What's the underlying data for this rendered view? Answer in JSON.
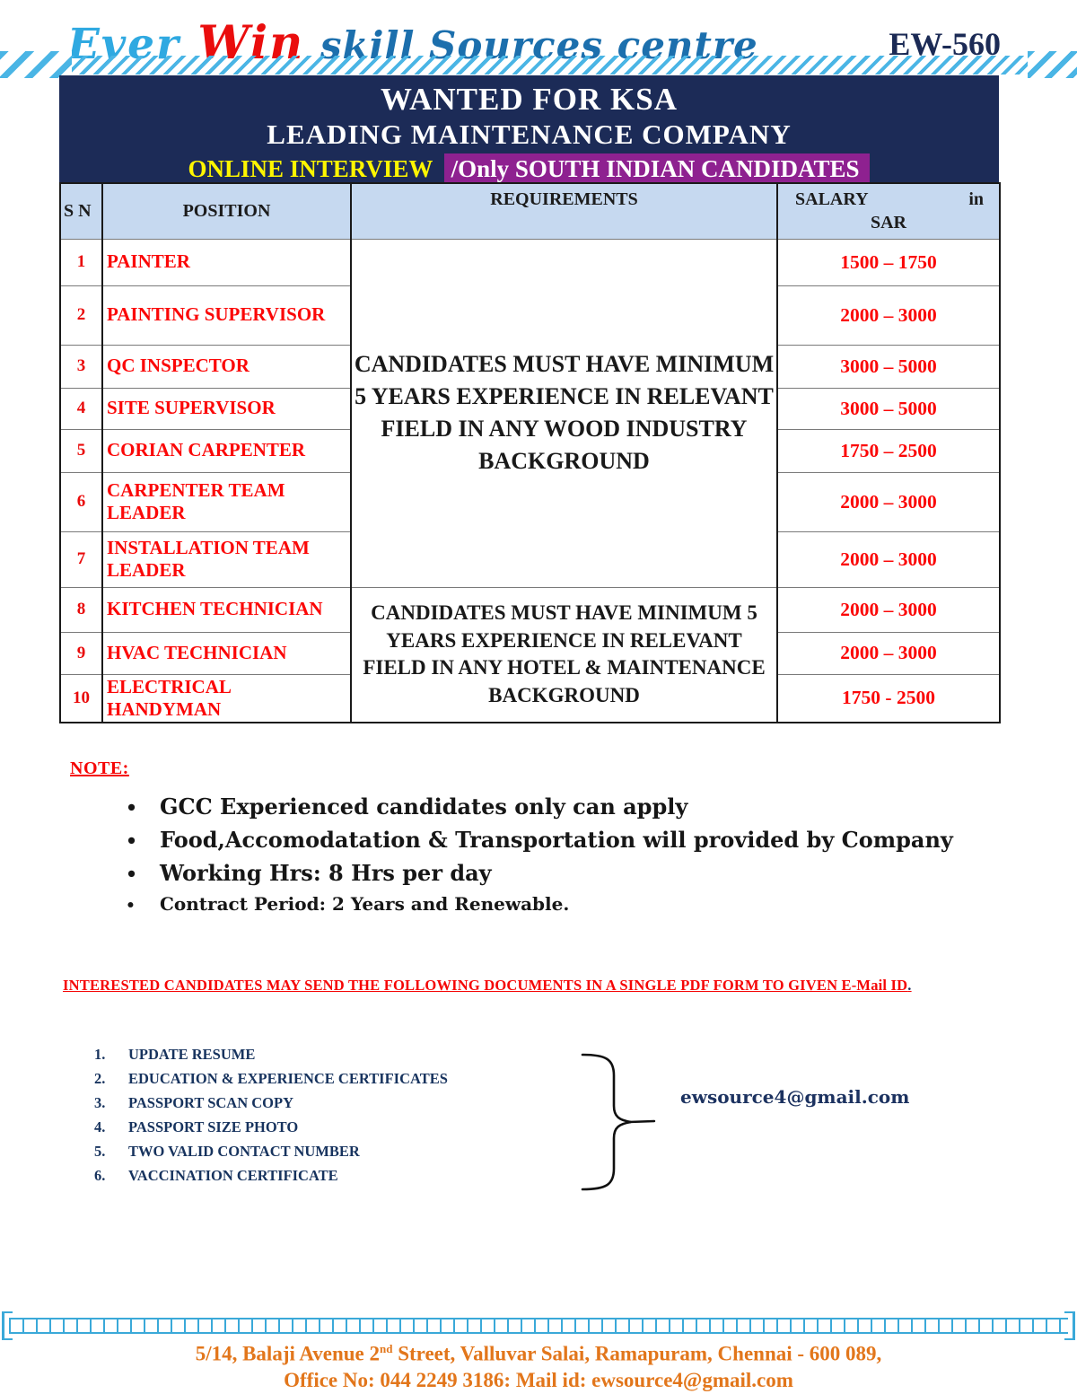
{
  "header": {
    "logo_part1": "Ever",
    "logo_part2": "Win",
    "logo_part3": "skill Sources centre",
    "code": "EW-560"
  },
  "banner": {
    "title": "WANTED FOR KSA",
    "subtitle": "LEADING MAINTENANCE COMPANY",
    "highlight_yellow": "ONLINE INTERVIEW",
    "highlight_purple": "/Only SOUTH INDIAN CANDIDATES"
  },
  "table": {
    "headers": {
      "sn": "S N",
      "position": "POSITION",
      "requirements": "REQUIREMENTS",
      "salary_l1_left": "SALARY",
      "salary_l1_right": "in",
      "salary_l2": "SAR"
    },
    "requirement_blocks": [
      {
        "text": "CANDIDATES MUST HAVE MINIMUM 5 YEARS EXPERIENCE IN RELEVANT FIELD IN ANY WOOD INDUSTRY BACKGROUND",
        "rowspan": 7
      },
      {
        "text": "CANDIDATES MUST HAVE MINIMUM 5 YEARS EXPERIENCE IN RELEVANT FIELD IN ANY HOTEL & MAINTENANCE BACKGROUND",
        "rowspan": 3
      }
    ],
    "rows": [
      {
        "sn": "1",
        "position": "PAINTER",
        "salary": "1500 – 1750",
        "req_block": 0
      },
      {
        "sn": "2",
        "position": "PAINTING SUPERVISOR",
        "salary": "2000 – 3000"
      },
      {
        "sn": "3",
        "position": "QC INSPECTOR",
        "salary": "3000 – 5000"
      },
      {
        "sn": "4",
        "position": "SITE SUPERVISOR",
        "salary": "3000 – 5000"
      },
      {
        "sn": "5",
        "position": "CORIAN CARPENTER",
        "salary": "1750 – 2500"
      },
      {
        "sn": "6",
        "position": "CARPENTER TEAM LEADER",
        "salary": "2000 – 3000"
      },
      {
        "sn": "7",
        "position": "INSTALLATION TEAM LEADER",
        "salary": "2000 – 3000"
      },
      {
        "sn": "8",
        "position": "KITCHEN TECHNICIAN",
        "salary": "2000 – 3000",
        "req_block": 1
      },
      {
        "sn": "9",
        "position": "HVAC TECHNICIAN",
        "salary": "2000 – 3000"
      },
      {
        "sn": "10",
        "position": "ELECTRICAL HANDYMAN",
        "salary": "1750 - 2500"
      }
    ]
  },
  "note": {
    "heading": "NOTE:",
    "bullet_glyph": "•",
    "bullets": [
      "GCC Experienced candidates only can apply",
      "Food,Accomodatation & Transportation will provided by Company",
      "Working Hrs: 8 Hrs per day",
      "Contract Period: 2 Years and Renewable."
    ]
  },
  "cta": {
    "line": "INTERESTED CANDIDATES MAY SEND THE FOLLOWING DOCUMENTS IN A SINGLE PDF FORM TO GIVEN E-Mail ID",
    "terminal": "."
  },
  "documents": {
    "items": [
      "UPDATE RESUME",
      "EDUCATION & EXPERIENCE CERTIFICATES",
      "PASSPORT SCAN COPY",
      "PASSPORT SIZE PHOTO",
      "TWO VALID CONTACT NUMBER",
      "VACCINATION CERTIFICATE"
    ],
    "email": "ewsource4@gmail.com"
  },
  "footer": {
    "address_pre": "5/14, Balaji Avenue 2",
    "address_sup": "nd",
    "address_post": " Street, Valluvar Salai, Ramapuram, Chennai - 600 089,",
    "office_line": "Office No: 044 2249 3186: Mail id: ewsource4@gmail.com"
  },
  "colors": {
    "navy": "#1c2b57",
    "purple": "#8e2190",
    "yellow": "#fdf500",
    "red_text": "#fb0707",
    "table_header_bg": "#c6d9f0",
    "logo_light_blue": "#2fa9e1",
    "logo_red": "#ea0d0d",
    "logo_blue": "#1c6fad",
    "hatch_blue": "#4ab5e5",
    "orange": "#e2761b",
    "doc_list_navy": "#17335e"
  }
}
